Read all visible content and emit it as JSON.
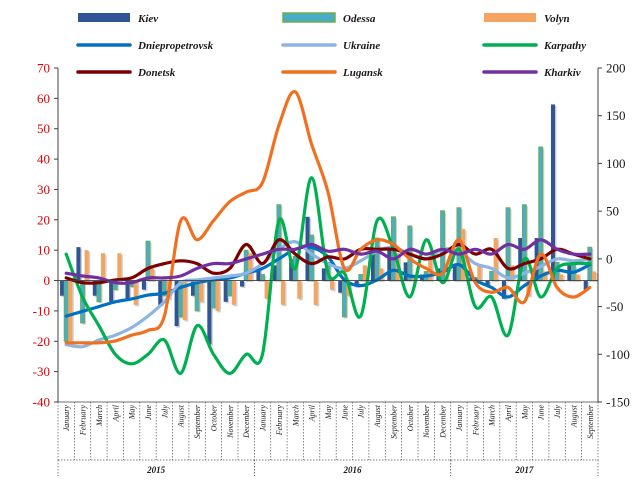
{
  "chart_data": {
    "type": "bar+line",
    "axes": {
      "left": {
        "range": [
          -40,
          70
        ],
        "ticks": [
          70,
          60,
          50,
          40,
          30,
          20,
          10,
          0,
          -10,
          -20,
          -30,
          -40
        ],
        "tick_color": "#e00000"
      },
      "right": {
        "range": [
          -150,
          200
        ],
        "ticks": [
          200,
          150,
          100,
          50,
          0,
          -50,
          -100,
          -150
        ],
        "tick_color": "#1a1a1a"
      }
    },
    "grid": false,
    "legend_position": "top",
    "months": [
      "January",
      "February",
      "March",
      "April",
      "May",
      "June",
      "July",
      "August",
      "September",
      "October",
      "November",
      "December",
      "January",
      "February",
      "March",
      "April",
      "May",
      "June",
      "July",
      "August",
      "September",
      "October",
      "November",
      "December",
      "January",
      "February",
      "March",
      "April",
      "May",
      "June",
      "July",
      "August",
      "September"
    ],
    "years": [
      {
        "label": "2015",
        "start": 0,
        "end": 11
      },
      {
        "label": "2016",
        "start": 12,
        "end": 23
      },
      {
        "label": "2017",
        "start": 24,
        "end": 32
      }
    ],
    "bar_series": [
      {
        "name": "Kiev",
        "axis": "left",
        "color": "#2f5597",
        "values": [
          -5,
          11,
          -5,
          -7,
          -6,
          -3,
          -8,
          -15,
          -5,
          -21,
          -7,
          -2,
          4,
          5,
          7,
          21,
          4,
          -4,
          -2,
          9,
          11,
          6,
          2,
          4,
          5,
          1,
          -2,
          -6,
          14,
          14,
          58,
          5,
          -3
        ]
      },
      {
        "name": "Odessa",
        "axis": "left",
        "color": "#4bacc6",
        "values": [
          -20,
          -14,
          -7,
          -3,
          -2,
          13,
          -5,
          -12,
          -10,
          -9,
          -5,
          10,
          2,
          25,
          8,
          15,
          6,
          -12,
          2,
          14,
          21,
          18,
          3,
          23,
          24,
          1,
          3,
          24,
          25,
          44,
          6,
          5,
          11
        ]
      },
      {
        "name": "Volyn",
        "axis": "left",
        "color": "#f4a460",
        "values": [
          -20,
          10,
          9,
          9,
          -8,
          4,
          -6,
          -13,
          -7,
          -10,
          -8,
          9,
          -6,
          -8,
          -6,
          -8,
          -3,
          -5,
          5,
          4,
          9,
          2,
          8,
          1,
          17,
          5,
          14,
          5,
          -5,
          3,
          2,
          2,
          3
        ]
      }
    ],
    "line_series": [
      {
        "name": "Dniepropetrovsk",
        "axis": "right",
        "color": "#0070c0",
        "values": [
          -60,
          -55,
          -50,
          -45,
          -42,
          -38,
          -36,
          -30,
          -25,
          -22,
          -20,
          -15,
          -10,
          0,
          10,
          12,
          2,
          -22,
          -28,
          -22,
          -12,
          -18,
          -18,
          -14,
          -6,
          -22,
          -30,
          -40,
          -28,
          -18,
          -12,
          -14,
          -6
        ]
      },
      {
        "name": "Ukraine",
        "axis": "right",
        "color": "#8eb4e3",
        "values": [
          -90,
          -92,
          -85,
          -80,
          -72,
          -60,
          -45,
          -25,
          -22,
          -20,
          -18,
          -15,
          -5,
          10,
          18,
          5,
          -5,
          -10,
          -2,
          8,
          12,
          5,
          0,
          10,
          8,
          -5,
          -10,
          -20,
          -15,
          -8,
          0,
          -2,
          0
        ]
      },
      {
        "name": "Karpathy",
        "axis": "right",
        "color": "#00b050",
        "values": [
          5,
          -40,
          -70,
          -100,
          -110,
          -100,
          -85,
          -120,
          -70,
          -100,
          -120,
          -100,
          -100,
          40,
          -10,
          85,
          -15,
          -15,
          -60,
          40,
          10,
          -40,
          20,
          -25,
          10,
          -50,
          -40,
          -80,
          0,
          -40,
          -10,
          -5,
          -5
        ]
      },
      {
        "name": "Donetsk",
        "axis": "right",
        "color": "#7b0000",
        "values": [
          -20,
          -25,
          -25,
          -22,
          -20,
          -10,
          -5,
          -2,
          -5,
          -15,
          -10,
          15,
          -5,
          20,
          5,
          -5,
          2,
          0,
          10,
          10,
          10,
          5,
          0,
          5,
          15,
          5,
          10,
          -10,
          -5,
          0,
          10,
          5,
          0
        ]
      },
      {
        "name": "Lugansk",
        "axis": "right",
        "color": "#f07020",
        "values": [
          -88,
          -88,
          -88,
          -86,
          -80,
          -75,
          -60,
          40,
          20,
          40,
          60,
          70,
          80,
          140,
          175,
          120,
          70,
          -10,
          10,
          20,
          15,
          0,
          -10,
          -15,
          20,
          -25,
          -35,
          -30,
          -45,
          5,
          -30,
          -40,
          -30
        ]
      },
      {
        "name": "Kharkiv",
        "axis": "right",
        "color": "#7030a0",
        "values": [
          -15,
          -18,
          -20,
          -25,
          -25,
          -20,
          -20,
          -18,
          -10,
          -5,
          -5,
          0,
          5,
          10,
          10,
          15,
          8,
          10,
          5,
          8,
          0,
          10,
          5,
          10,
          5,
          10,
          5,
          15,
          10,
          20,
          10,
          5,
          5
        ]
      }
    ],
    "legend": [
      {
        "name": "Kiev",
        "kind": "bar",
        "color": "#2f5597"
      },
      {
        "name": "Odessa",
        "kind": "bar",
        "color": "#4bacc6"
      },
      {
        "name": "Volyn",
        "kind": "bar",
        "color": "#f4a460"
      },
      {
        "name": "Dniepropetrovsk",
        "kind": "line",
        "color": "#0070c0"
      },
      {
        "name": "Ukraine",
        "kind": "line",
        "color": "#8eb4e3"
      },
      {
        "name": "Karpathy",
        "kind": "line",
        "color": "#00b050"
      },
      {
        "name": "Donetsk",
        "kind": "line",
        "color": "#7b0000"
      },
      {
        "name": "Lugansk",
        "kind": "line",
        "color": "#f07020"
      },
      {
        "name": "Kharkiv",
        "kind": "line",
        "color": "#7030a0"
      }
    ]
  }
}
